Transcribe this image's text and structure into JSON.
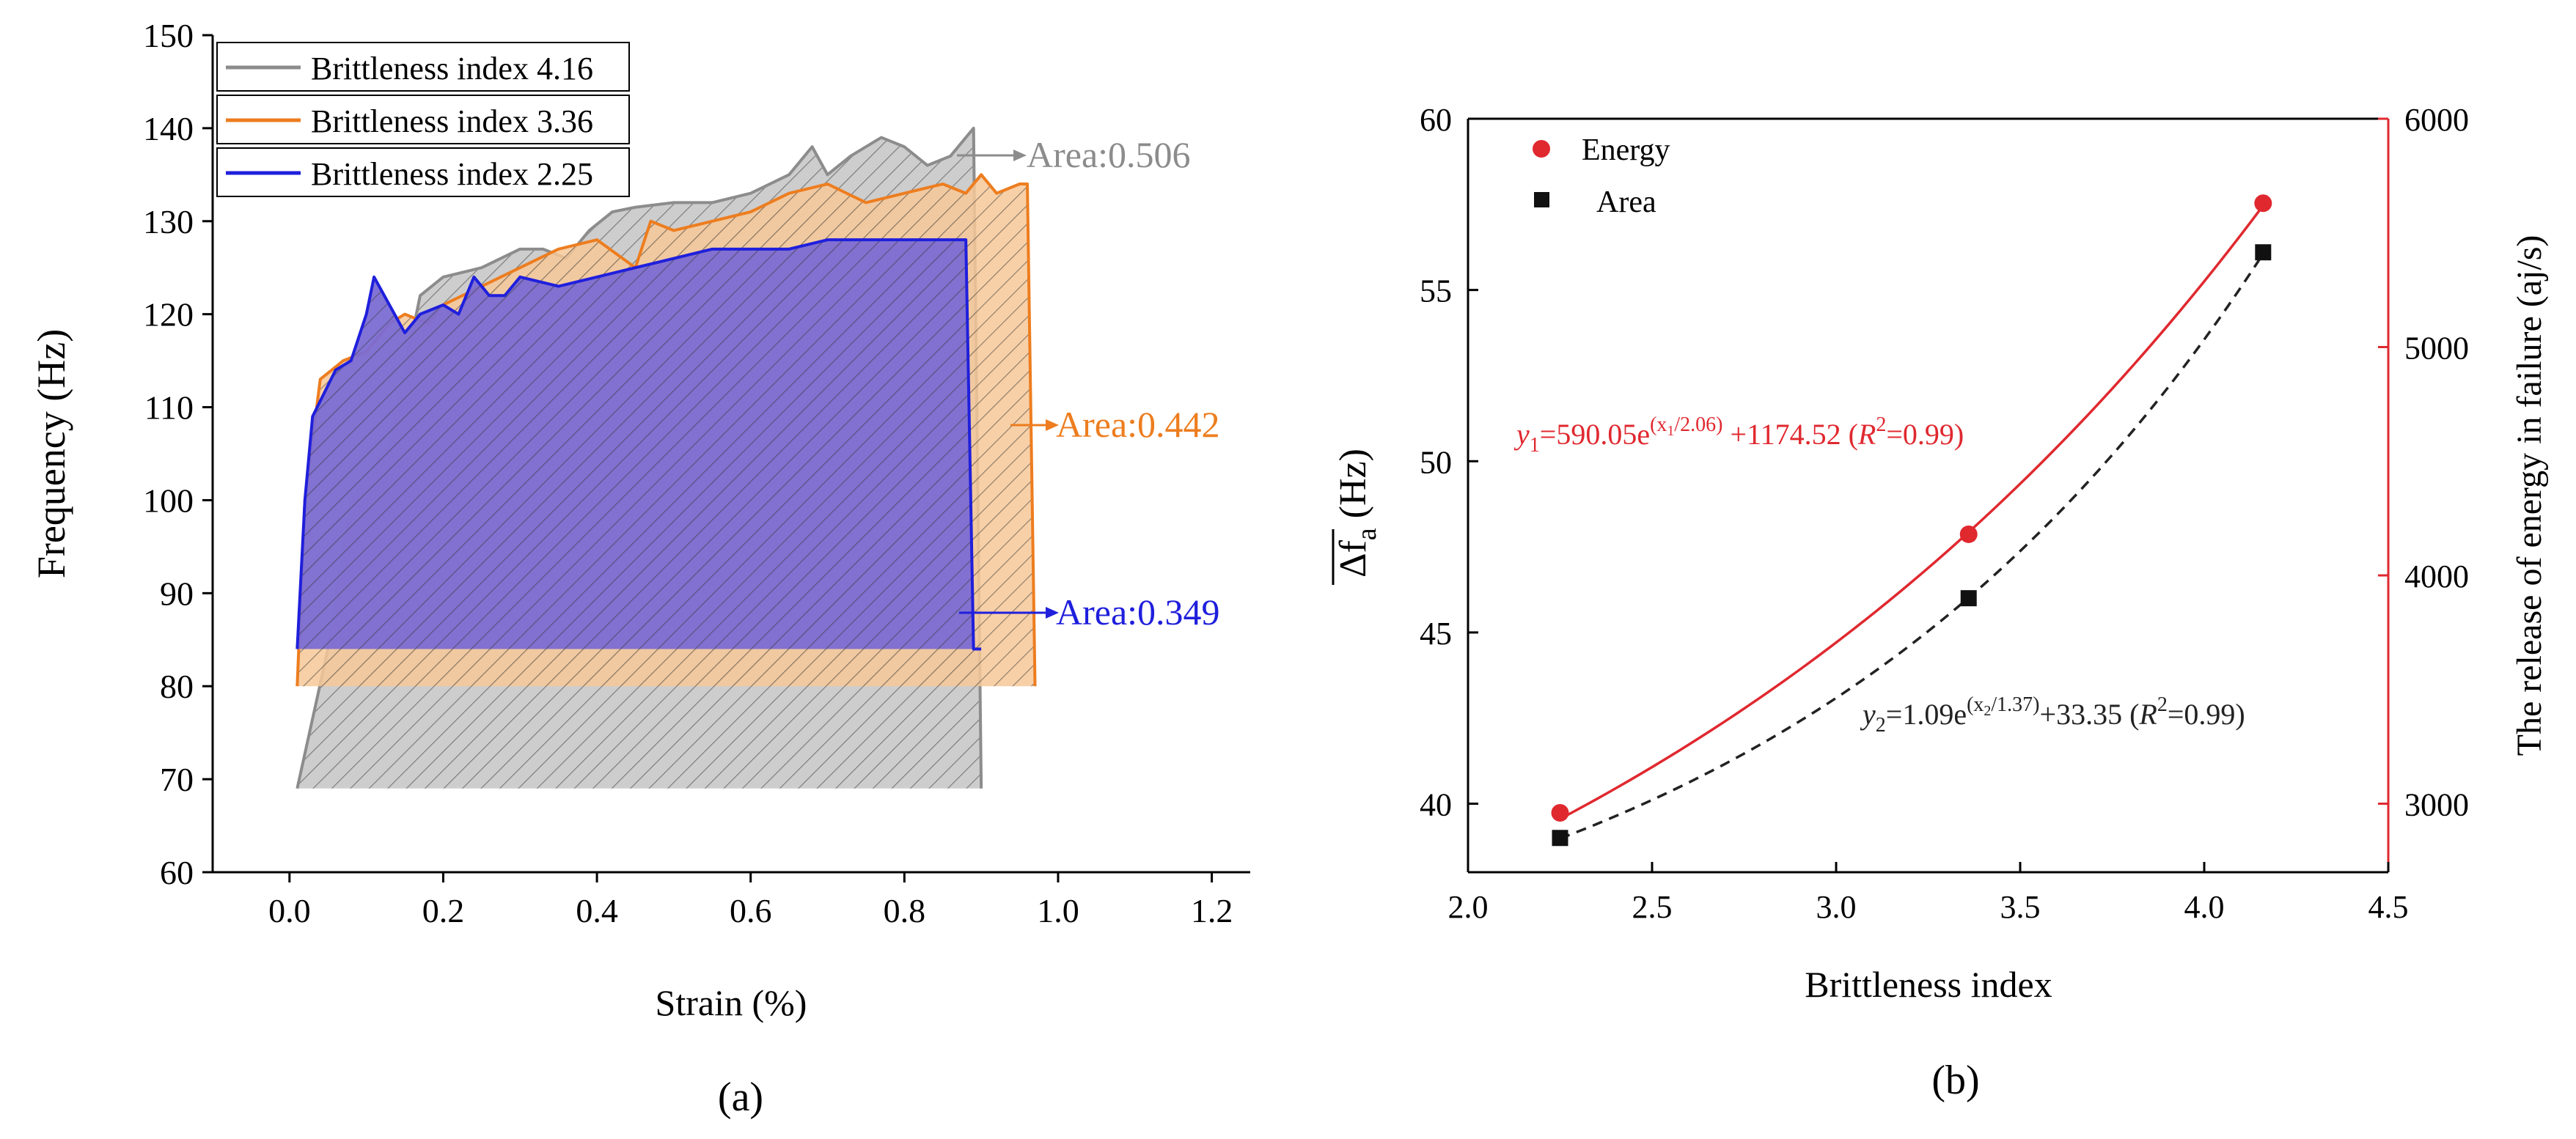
{
  "chart_data": [
    {
      "type": "area",
      "panel_label": "(a)",
      "xlabel": "Strain (%)",
      "ylabel": "Frequency (Hz)",
      "xlim": [
        -0.1,
        1.25
      ],
      "ylim": [
        60,
        150
      ],
      "xticks": [
        0.0,
        0.2,
        0.4,
        0.6,
        0.8,
        1.0,
        1.2
      ],
      "xtick_labels": [
        "0.0",
        "0.2",
        "0.4",
        "0.6",
        "0.8",
        "1.0",
        "1.2"
      ],
      "yticks": [
        60,
        70,
        80,
        90,
        100,
        110,
        120,
        130,
        140,
        150
      ],
      "ytick_labels": [
        "60",
        "70",
        "80",
        "90",
        "100",
        "110",
        "120",
        "130",
        "140",
        "150"
      ],
      "legend_position": "top-left",
      "series": [
        {
          "name": "Brittleness index 4.16",
          "color": "#8c8c8c",
          "fill": "#c8c8c8",
          "baseline": 69,
          "x": [
            0.01,
            0.05,
            0.08,
            0.13,
            0.17,
            0.2,
            0.25,
            0.3,
            0.33,
            0.36,
            0.39,
            0.42,
            0.45,
            0.5,
            0.55,
            0.6,
            0.65,
            0.68,
            0.7,
            0.73,
            0.77,
            0.8,
            0.83,
            0.86,
            0.89,
            0.9
          ],
          "y": [
            69,
            84,
            100,
            106,
            122,
            124,
            125,
            127,
            127,
            126,
            129,
            131,
            131.5,
            132,
            132,
            133,
            135,
            138,
            135,
            137,
            139,
            138,
            136,
            137,
            140,
            69
          ],
          "annotation": "Area:0.506"
        },
        {
          "name": "Brittleness index 3.36",
          "color": "#ed7d1f",
          "fill": "#f7c898",
          "baseline": 80,
          "x": [
            0.01,
            0.02,
            0.04,
            0.07,
            0.1,
            0.13,
            0.15,
            0.18,
            0.2,
            0.25,
            0.3,
            0.35,
            0.4,
            0.45,
            0.47,
            0.5,
            0.55,
            0.6,
            0.65,
            0.7,
            0.75,
            0.8,
            0.85,
            0.88,
            0.9,
            0.92,
            0.95,
            0.96,
            0.97
          ],
          "y": [
            80,
            100,
            113,
            115,
            116,
            119,
            120,
            119,
            121,
            123,
            125,
            127,
            128,
            125,
            130,
            129,
            130,
            131,
            133,
            134,
            132,
            133,
            134,
            133,
            135,
            133,
            134,
            134,
            80
          ],
          "annotation": "Area:0.442"
        },
        {
          "name": "Brittleness index 2.25",
          "color": "#1f1fdc",
          "fill": "#7b6dd3",
          "baseline": 84,
          "x": [
            0.01,
            0.02,
            0.03,
            0.06,
            0.08,
            0.1,
            0.11,
            0.13,
            0.15,
            0.17,
            0.2,
            0.22,
            0.24,
            0.26,
            0.28,
            0.3,
            0.35,
            0.4,
            0.45,
            0.5,
            0.55,
            0.6,
            0.65,
            0.7,
            0.75,
            0.8,
            0.85,
            0.88,
            0.89,
            0.9
          ],
          "y": [
            84,
            100,
            109,
            114,
            115,
            120,
            124,
            121,
            118,
            120,
            121,
            120,
            124,
            122,
            122,
            124,
            123,
            124,
            125,
            126,
            127,
            127,
            127,
            128,
            128,
            128,
            128,
            128,
            84,
            84
          ],
          "annotation": "Area:0.349"
        }
      ]
    },
    {
      "type": "scatter",
      "panel_label": "(b)",
      "xlabel": "Brittleness index",
      "ylabel_left": "Δf a (Hz)",
      "ylabel_left_main": "Δf",
      "ylabel_left_sub": "a",
      "ylabel_left_unit": " (Hz)",
      "ylabel_right": "The release of energy in failure (aj/s)",
      "xlim": [
        2.0,
        4.5
      ],
      "ylim_left": [
        38,
        60
      ],
      "ylim_right": [
        2700,
        6000
      ],
      "xticks": [
        2.0,
        2.5,
        3.0,
        3.5,
        4.0,
        4.5
      ],
      "xtick_labels": [
        "2.0",
        "2.5",
        "3.0",
        "3.5",
        "4.0",
        "4.5"
      ],
      "yticks_left": [
        40,
        45,
        50,
        55,
        60
      ],
      "ytick_labels_left": [
        "40",
        "45",
        "50",
        "55",
        "60"
      ],
      "yticks_right": [
        3000,
        4000,
        5000,
        6000
      ],
      "ytick_labels_right": [
        "3000",
        "4000",
        "5000",
        "6000"
      ],
      "legend_position": "top-left",
      "series": [
        {
          "name": "Energy",
          "color": "#e0282f",
          "marker": "circle",
          "axis": "right",
          "x": [
            2.25,
            3.36,
            4.16
          ],
          "y": [
            2960,
            4180,
            5630
          ],
          "fit_equation": "y1=590.05e^(x1/2.06) +1174.52 (R2=0.99)"
        },
        {
          "name": "Area",
          "color": "#111111",
          "marker": "square",
          "axis": "left",
          "x": [
            2.25,
            3.36,
            4.16
          ],
          "y": [
            39.0,
            46.0,
            56.1
          ],
          "fit_equation": "y2=1.09e^(x2/1.37)+33.35 (R2=0.99)"
        }
      ]
    }
  ]
}
